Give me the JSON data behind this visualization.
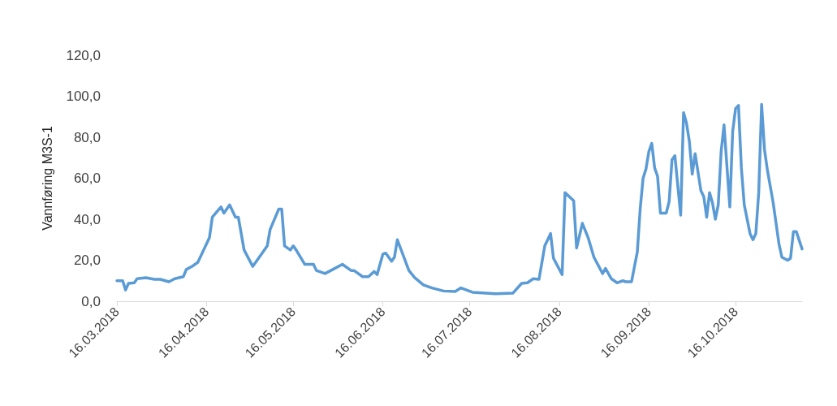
{
  "chart_data": {
    "type": "line",
    "ylabel": "Vannføring M3S-1",
    "x": [
      "2018-03-16",
      "2018-03-18",
      "2018-03-19",
      "2018-03-20",
      "2018-03-22",
      "2018-03-23",
      "2018-03-26",
      "2018-03-29",
      "2018-03-31",
      "2018-04-03",
      "2018-04-05",
      "2018-04-08",
      "2018-04-09",
      "2018-04-11",
      "2018-04-13",
      "2018-04-15",
      "2018-04-17",
      "2018-04-18",
      "2018-04-21",
      "2018-04-22",
      "2018-04-24",
      "2018-04-26",
      "2018-04-27",
      "2018-04-29",
      "2018-05-02",
      "2018-05-05",
      "2018-05-07",
      "2018-05-08",
      "2018-05-11",
      "2018-05-12",
      "2018-05-13",
      "2018-05-15",
      "2018-05-16",
      "2018-05-17",
      "2018-05-20",
      "2018-05-23",
      "2018-05-24",
      "2018-05-27",
      "2018-05-29",
      "2018-06-02",
      "2018-06-05",
      "2018-06-06",
      "2018-06-09",
      "2018-06-11",
      "2018-06-13",
      "2018-06-14",
      "2018-06-16",
      "2018-06-17",
      "2018-06-19",
      "2018-06-20",
      "2018-06-21",
      "2018-06-25",
      "2018-06-27",
      "2018-06-30",
      "2018-07-03",
      "2018-07-07",
      "2018-07-11",
      "2018-07-13",
      "2018-07-17",
      "2018-07-25",
      "2018-07-31",
      "2018-08-03",
      "2018-08-05",
      "2018-08-07",
      "2018-08-09",
      "2018-08-11",
      "2018-08-13",
      "2018-08-14",
      "2018-08-17",
      "2018-08-18",
      "2018-08-21",
      "2018-08-22",
      "2018-08-24",
      "2018-08-26",
      "2018-08-28",
      "2018-08-31",
      "2018-09-01",
      "2018-09-03",
      "2018-09-05",
      "2018-09-07",
      "2018-09-08",
      "2018-09-10",
      "2018-09-12",
      "2018-09-13",
      "2018-09-14",
      "2018-09-15",
      "2018-09-16",
      "2018-09-17",
      "2018-09-18",
      "2018-09-19",
      "2018-09-20",
      "2018-09-22",
      "2018-09-23",
      "2018-09-24",
      "2018-09-25",
      "2018-09-27",
      "2018-09-28",
      "2018-09-29",
      "2018-09-30",
      "2018-10-01",
      "2018-10-02",
      "2018-10-04",
      "2018-10-05",
      "2018-10-06",
      "2018-10-07",
      "2018-10-08",
      "2018-10-09",
      "2018-10-10",
      "2018-10-11",
      "2018-10-12",
      "2018-10-14",
      "2018-10-15",
      "2018-10-16",
      "2018-10-17",
      "2018-10-18",
      "2018-10-19",
      "2018-10-21",
      "2018-10-22",
      "2018-10-23",
      "2018-10-24",
      "2018-10-25",
      "2018-10-26",
      "2018-10-27",
      "2018-10-29",
      "2018-10-31",
      "2018-11-01",
      "2018-11-03",
      "2018-11-04",
      "2018-11-05",
      "2018-11-06",
      "2018-11-08"
    ],
    "series": [
      {
        "color": "#5b9bd5",
        "values": [
          10,
          10,
          5.5,
          8.7,
          9,
          11,
          11.5,
          10.7,
          10.7,
          9.5,
          11,
          12,
          15.5,
          17,
          19,
          25,
          31,
          41,
          46,
          43,
          47,
          41,
          41,
          25,
          17,
          23,
          27,
          35,
          45,
          45,
          27,
          25,
          27,
          25,
          18,
          18,
          15,
          13.5,
          15,
          18,
          15,
          15,
          12,
          12,
          14.5,
          13,
          23,
          23.5,
          19.5,
          21.5,
          30,
          15,
          11.5,
          8,
          6.5,
          5,
          4.8,
          6.5,
          4.4,
          3.7,
          4,
          8.7,
          9,
          11,
          10.7,
          27,
          33,
          21,
          13,
          53,
          49,
          26,
          38,
          31,
          21.5,
          13.5,
          16,
          11,
          9,
          10,
          9.5,
          9.5,
          24,
          45,
          60,
          64.5,
          73,
          77,
          65,
          61,
          43,
          43,
          48.5,
          69,
          71,
          42,
          92,
          87,
          78,
          62,
          72,
          54,
          51,
          41,
          53,
          48,
          40,
          47,
          73,
          86,
          46,
          83,
          94,
          95.5,
          65,
          47,
          33,
          30,
          33,
          53,
          96,
          74,
          64,
          48,
          28,
          21.5,
          20,
          21,
          34,
          34,
          25.5
        ]
      }
    ],
    "xlim": [
      "2018-03-16",
      "2018-11-08"
    ],
    "xticks": [
      {
        "value": "2018-03-16",
        "label": "16.03.2018"
      },
      {
        "value": "2018-04-16",
        "label": "16.04.2018"
      },
      {
        "value": "2018-05-16",
        "label": "16.05.2018"
      },
      {
        "value": "2018-06-16",
        "label": "16.06.2018"
      },
      {
        "value": "2018-07-16",
        "label": "16.07.2018"
      },
      {
        "value": "2018-08-16",
        "label": "16.08.2018"
      },
      {
        "value": "2018-09-16",
        "label": "16.09.2018"
      },
      {
        "value": "2018-10-16",
        "label": "16.10.2018"
      }
    ],
    "ylim": [
      0,
      120
    ],
    "yticks": [
      {
        "value": 0,
        "label": "0,0"
      },
      {
        "value": 20,
        "label": "20,0"
      },
      {
        "value": 40,
        "label": "40,0"
      },
      {
        "value": 60,
        "label": "60,0"
      },
      {
        "value": 80,
        "label": "80,0"
      },
      {
        "value": 100,
        "label": "100,0"
      },
      {
        "value": 120,
        "label": "120,0"
      }
    ],
    "grid": false,
    "marker": "none",
    "line_style": "solid"
  }
}
